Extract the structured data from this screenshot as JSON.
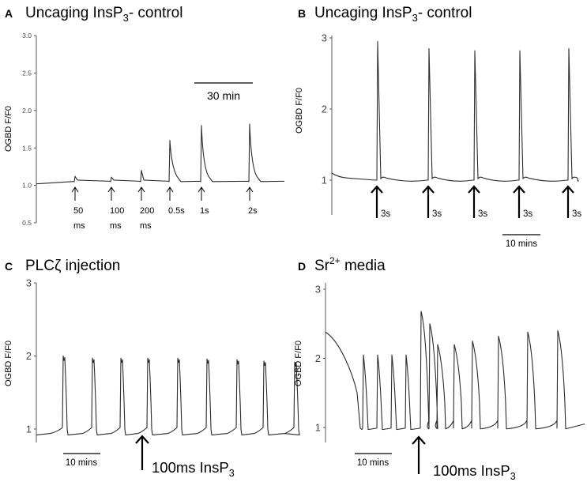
{
  "chart_data": [
    {
      "panel_letter": "A",
      "type": "line",
      "title": "Uncaging InsP",
      "title_sub": "3",
      "title_suffix": "- control",
      "ylabel": "OGBD F/F0",
      "ylim": [
        0.5,
        3.0
      ],
      "yticks": [
        "3.0",
        "2.5",
        "2.0",
        "1.5",
        "1.0",
        "0.5"
      ],
      "scalebar_label": "30 min",
      "stimuli": [
        {
          "label_line1": "50",
          "label_line2": "ms",
          "peak": 1.12
        },
        {
          "label_line1": "100",
          "label_line2": "ms",
          "peak": 1.11
        },
        {
          "label_line1": "200",
          "label_line2": "ms",
          "peak": 1.2
        },
        {
          "label_line1": "0.5s",
          "label_line2": "",
          "peak": 1.6
        },
        {
          "label_line1": "1s",
          "label_line2": "",
          "peak": 1.8
        },
        {
          "label_line1": "2s",
          "label_line2": "",
          "peak": 1.82
        }
      ],
      "baseline": 1.05
    },
    {
      "panel_letter": "B",
      "type": "line",
      "title": "Uncaging InsP",
      "title_sub": "3",
      "title_suffix": "- control",
      "ylabel": "OGBD F/F0",
      "ylim": [
        0.5,
        3.0
      ],
      "yticks": [
        "3",
        "2",
        "1"
      ],
      "scalebar_label": "10 mins",
      "stimuli": [
        {
          "label": "3s",
          "peak": 2.95
        },
        {
          "label": "3s",
          "peak": 2.85
        },
        {
          "label": "3s",
          "peak": 2.82
        },
        {
          "label": "3s",
          "peak": 2.82
        },
        {
          "label": "3s",
          "peak": 2.85
        }
      ],
      "baseline": 0.98
    },
    {
      "panel_letter": "C",
      "type": "line",
      "title": "PLCζ injection",
      "ylabel": "OGBD F/F0",
      "ylim": [
        0.6,
        3.0
      ],
      "yticks": [
        "3",
        "2",
        "1"
      ],
      "scalebar_label": "10 mins",
      "arrow_label": "100ms InsP",
      "arrow_label_sub": "3",
      "spike_peaks": [
        2.0,
        1.97,
        1.97,
        1.97,
        1.97,
        1.96,
        1.95,
        1.93,
        1.92
      ],
      "baseline": 0.92
    },
    {
      "panel_letter": "D",
      "type": "line",
      "title": "Sr",
      "title_sup": "2+",
      "title_suffix": " media",
      "ylabel": "OGBD F/F0",
      "ylim": [
        0.6,
        3.0
      ],
      "yticks": [
        "3",
        "2",
        "1"
      ],
      "scalebar_label": "10 mins",
      "arrow_label": "100ms InsP",
      "arrow_label_sub": "3",
      "start_value": 2.38,
      "spike_peaks": [
        2.05,
        2.05,
        2.05,
        2.05,
        2.68,
        2.5,
        2.2,
        2.2,
        2.25,
        2.32,
        2.38,
        2.4
      ],
      "baseline": 0.97
    }
  ]
}
